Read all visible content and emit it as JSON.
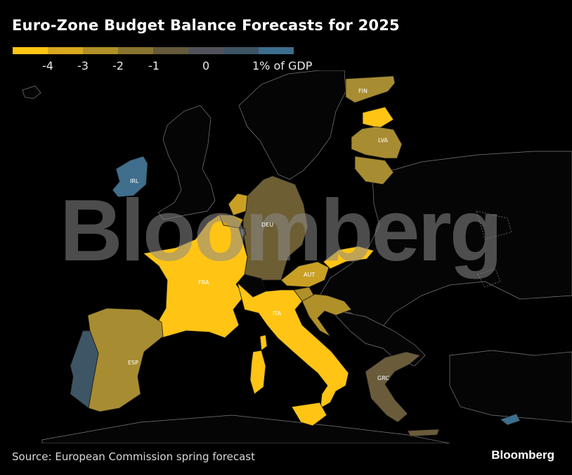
{
  "title": "Euro-Zone Budget Balance Forecasts for 2025",
  "legend": {
    "colors": [
      "#ffc414",
      "#d9a81e",
      "#b09028",
      "#8a7530",
      "#655a3a",
      "#50545a",
      "#3e5566",
      "#3d6e8d"
    ],
    "labels": [
      "-4",
      "-3",
      "-2",
      "-1",
      "0",
      "1% of GDP"
    ]
  },
  "countries": [
    {
      "code": "FIN",
      "label": "FIN",
      "color": "#a88c32"
    },
    {
      "code": "LVA",
      "label": "LVA",
      "color": "#a88c32"
    },
    {
      "code": "IRL",
      "label": "IRL",
      "color": "#3f6f8c"
    },
    {
      "code": "DEU",
      "label": "DEU",
      "color": "#6e5e34"
    },
    {
      "code": "FRA",
      "label": "FRA",
      "color": "#ffc414"
    },
    {
      "code": "AUT",
      "label": "AUT",
      "color": "#c9a024"
    },
    {
      "code": "ITA",
      "label": "ITA",
      "color": "#ffc414"
    },
    {
      "code": "ESP",
      "label": "ESP",
      "color": "#a88c32"
    },
    {
      "code": "GRC",
      "label": "GRC",
      "color": "#6a5c3a"
    }
  ],
  "watermark": "Bloomberg",
  "source": "Source: European Commission spring forecast",
  "brand": "Bloomberg"
}
